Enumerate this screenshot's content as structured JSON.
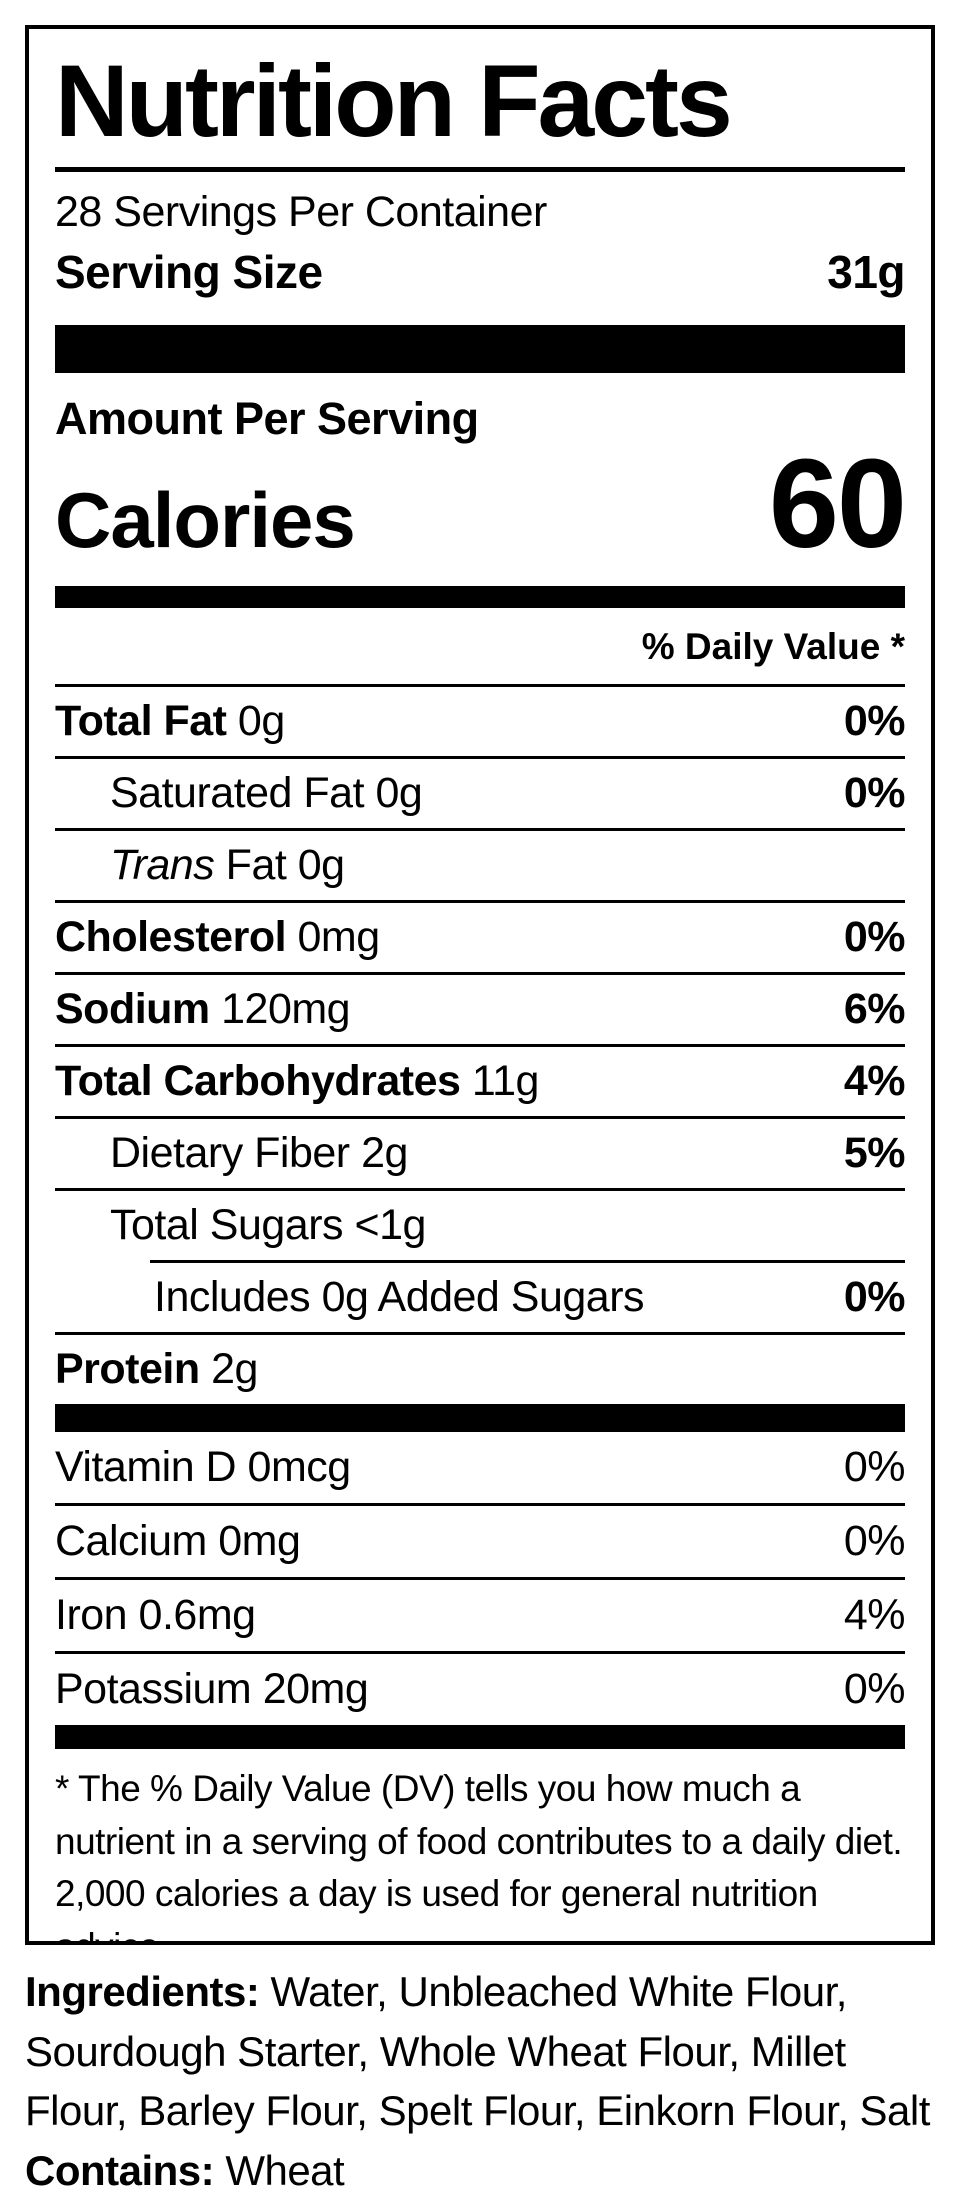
{
  "colors": {
    "text": "#000000",
    "background": "#ffffff"
  },
  "label": {
    "title": "Nutrition Facts",
    "servings_per_container": "28 Servings Per Container",
    "serving_size_label": "Serving Size",
    "serving_size_value": "31g",
    "amount_per_serving": "Amount Per Serving",
    "calories_label": "Calories",
    "calories_value": "60",
    "daily_value_header": "% Daily Value *",
    "rows": [
      {
        "bold": "Total Fat",
        "rest": " 0g",
        "dv": "0%"
      },
      {
        "rest": "Saturated Fat 0g",
        "dv": "0%"
      },
      {
        "italic": "Trans",
        "rest": " Fat 0g",
        "dv": ""
      },
      {
        "bold": "Cholesterol",
        "rest": " 0mg",
        "dv": "0%"
      },
      {
        "bold": "Sodium",
        "rest": " 120mg",
        "dv": "6%"
      },
      {
        "bold": "Total Carbohydrates",
        "rest": " 11g",
        "dv": "4%"
      },
      {
        "rest": "Dietary Fiber 2g",
        "dv": "5%"
      },
      {
        "rest": "Total Sugars <1g",
        "dv": ""
      },
      {
        "rest": "Includes 0g Added Sugars",
        "dv": "0%"
      },
      {
        "bold": "Protein",
        "rest": " 2g",
        "dv": ""
      }
    ],
    "vitamin_rows": [
      {
        "rest": "Vitamin D 0mcg",
        "dv": "0%"
      },
      {
        "rest": "Calcium 0mg",
        "dv": "0%"
      },
      {
        "rest": "Iron 0.6mg",
        "dv": "4%"
      },
      {
        "rest": "Potassium 20mg",
        "dv": "0%"
      }
    ],
    "footnote": "* The % Daily Value (DV) tells you how much a nutrient in a serving of food contributes to a daily diet. 2,000 calories a day is used for general nutrition advice."
  },
  "ingredients": {
    "label": "Ingredients:",
    "text": " Water, Unbleached White Flour, Sourdough Starter, Whole Wheat Flour, Millet Flour, Barley Flour, Spelt Flour, Einkorn Flour, Salt",
    "contains_label": "Contains:",
    "contains_text": " Wheat"
  }
}
